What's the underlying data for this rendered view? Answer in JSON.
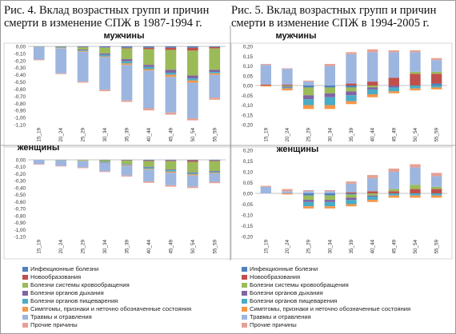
{
  "left_title": "Рис. 4. Вклад возрастных групп и причин\nсмерти в изменение СПЖ в 1987-1994 г.",
  "right_title": "Рис. 5. Вклад возрастных групп и причин\nсмерти в изменение СПЖ в 1994-2005 г.",
  "colors": [
    "#4f81bd",
    "#c0504d",
    "#9bbb59",
    "#8064a2",
    "#4bacc6",
    "#f79646",
    "#9db6e0",
    "#e6a196"
  ],
  "legend": [
    "Инфекционные болезни",
    "Новообразования",
    "Болезни системы кровообращения",
    "Болезни органов дыхания",
    "Болезни органов пищеварения",
    "Симптомы, признаки и неточно обозначенные состояния",
    "Травмы и отравления",
    "Прочие причины"
  ],
  "chart_data": [
    {
      "type": "bar",
      "stacked": true,
      "title": "мужчины",
      "categories": [
        "15_19",
        "20_24",
        "25_29",
        "30_34",
        "35_39",
        "40_44",
        "45_49",
        "50_54",
        "55_59"
      ],
      "ylim": [
        -1.1,
        0.0
      ],
      "yticks": [
        0.0,
        -0.1,
        -0.2,
        -0.3,
        -0.4,
        -0.5,
        -0.6,
        -0.7,
        -0.8,
        -0.9,
        -1.0,
        -1.1
      ],
      "ytick_labels": [
        "0,00",
        "-0,10",
        "-0,20",
        "-0,30",
        "-0,40",
        "-0,50",
        "-0,60",
        "-0,70",
        "-0,80",
        "-0,90",
        "-1,00",
        "-1,10"
      ],
      "series": [
        {
          "name": "Инфекционные болезни",
          "values": [
            0,
            -0.005,
            -0.01,
            -0.015,
            -0.02,
            -0.02,
            -0.02,
            -0.02,
            -0.01
          ]
        },
        {
          "name": "Новообразования",
          "values": [
            0,
            0,
            -0.005,
            -0.005,
            -0.01,
            -0.02,
            -0.03,
            -0.04,
            -0.02
          ]
        },
        {
          "name": "Болезни системы кровообращения",
          "values": [
            -0.005,
            -0.01,
            -0.03,
            -0.08,
            -0.15,
            -0.22,
            -0.28,
            -0.35,
            -0.3
          ]
        },
        {
          "name": "Болезни органов дыхания",
          "values": [
            0,
            -0.005,
            -0.01,
            -0.02,
            -0.03,
            -0.03,
            -0.04,
            -0.04,
            -0.03
          ]
        },
        {
          "name": "Болезни органов пищеварения",
          "values": [
            0,
            -0.005,
            -0.01,
            -0.02,
            -0.03,
            -0.03,
            -0.03,
            -0.03,
            -0.02
          ]
        },
        {
          "name": "Симптомы, признаки и неточно обозначенные состояния",
          "values": [
            0,
            -0.005,
            -0.01,
            -0.01,
            -0.02,
            -0.02,
            -0.03,
            -0.03,
            -0.02
          ]
        },
        {
          "name": "Травмы и отравления",
          "values": [
            -0.18,
            -0.35,
            -0.42,
            -0.46,
            -0.5,
            -0.53,
            -0.5,
            -0.5,
            -0.32
          ]
        },
        {
          "name": "Прочие причины",
          "values": [
            -0.01,
            -0.01,
            -0.015,
            -0.02,
            -0.02,
            -0.03,
            -0.03,
            -0.03,
            -0.03
          ]
        }
      ]
    },
    {
      "type": "bar",
      "stacked": true,
      "title": "женщины",
      "categories": [
        "15_19",
        "20_24",
        "25_29",
        "30_34",
        "35_39",
        "40_44",
        "45_49",
        "50_54",
        "55_59"
      ],
      "ylim": [
        -1.1,
        0.0
      ],
      "yticks": [
        0.0,
        -0.1,
        -0.2,
        -0.3,
        -0.4,
        -0.5,
        -0.6,
        -0.7,
        -0.8,
        -0.9,
        -1.0,
        -1.1
      ],
      "ytick_labels": [
        "0,00",
        "-0,10",
        "-0,20",
        "-0,30",
        "-0,40",
        "-0,50",
        "-0,60",
        "-0,70",
        "-0,80",
        "-0,90",
        "-1,00",
        "-1,10"
      ],
      "series": [
        {
          "name": "Инфекционные болезни",
          "values": [
            0,
            0,
            0,
            -0.005,
            -0.005,
            -0.01,
            -0.01,
            -0.01,
            -0.01
          ]
        },
        {
          "name": "Новообразования",
          "values": [
            0,
            0,
            0,
            0,
            -0.005,
            -0.01,
            -0.01,
            -0.02,
            -0.01
          ]
        },
        {
          "name": "Болезни системы кровообращения",
          "values": [
            0,
            -0.005,
            -0.01,
            -0.02,
            -0.05,
            -0.08,
            -0.12,
            -0.15,
            -0.14
          ]
        },
        {
          "name": "Болезни органов дыхания",
          "values": [
            0,
            0,
            0,
            -0.005,
            -0.005,
            -0.01,
            -0.01,
            -0.01,
            -0.01
          ]
        },
        {
          "name": "Болезни органов пищеварения",
          "values": [
            0,
            0,
            -0.005,
            -0.01,
            -0.01,
            -0.02,
            -0.02,
            -0.02,
            -0.015
          ]
        },
        {
          "name": "Симптомы, признаки и неточно обозначенные состояния",
          "values": [
            0,
            0,
            -0.005,
            -0.005,
            -0.01,
            -0.01,
            -0.015,
            -0.015,
            -0.01
          ]
        },
        {
          "name": "Травмы и отравления",
          "values": [
            -0.06,
            -0.08,
            -0.09,
            -0.12,
            -0.14,
            -0.17,
            -0.18,
            -0.16,
            -0.12
          ]
        },
        {
          "name": "Прочие причины",
          "values": [
            -0.01,
            -0.01,
            -0.01,
            -0.01,
            -0.015,
            -0.02,
            -0.02,
            -0.02,
            -0.02
          ]
        }
      ]
    },
    {
      "type": "bar",
      "stacked": true,
      "title": "мужчины",
      "categories": [
        "15_19",
        "20_24",
        "25_29",
        "30_34",
        "35_39",
        "40_44",
        "45_49",
        "50_54",
        "55_59"
      ],
      "ylim": [
        -0.2,
        0.2
      ],
      "yticks": [
        0.2,
        0.15,
        0.1,
        0.05,
        0.0,
        -0.05,
        -0.1,
        -0.15,
        -0.2
      ],
      "ytick_labels": [
        "0,20",
        "0,15",
        "0,10",
        "0,05",
        "0,00",
        "-0,05",
        "-0,10",
        "-0,15",
        "-0,20"
      ],
      "series": [
        {
          "name": "Инфекционные болезни",
          "values": [
            0,
            0,
            -0.01,
            -0.01,
            -0.01,
            0,
            0,
            0,
            0.01
          ]
        },
        {
          "name": "Новообразования",
          "values": [
            0.005,
            0.005,
            0,
            0,
            0.01,
            0.02,
            0.04,
            0.06,
            0.05
          ]
        },
        {
          "name": "Болезни системы кровообращения",
          "values": [
            0,
            -0.005,
            -0.04,
            -0.03,
            -0.02,
            -0.01,
            0,
            0.01,
            0.01
          ]
        },
        {
          "name": "Болезни органов дыхания",
          "values": [
            0,
            -0.005,
            -0.02,
            -0.02,
            -0.02,
            -0.01,
            -0.01,
            0,
            0
          ]
        },
        {
          "name": "Болезни органов пищеварения",
          "values": [
            0,
            -0.005,
            -0.03,
            -0.04,
            -0.03,
            -0.025,
            -0.02,
            -0.015,
            -0.01
          ]
        },
        {
          "name": "Симптомы, признаки и неточно обозначенные состояния",
          "values": [
            -0.005,
            -0.01,
            -0.02,
            -0.02,
            -0.015,
            -0.015,
            -0.01,
            -0.01,
            -0.01
          ]
        },
        {
          "name": "Травмы и отравления",
          "values": [
            0.1,
            0.08,
            0.02,
            0.1,
            0.15,
            0.15,
            0.13,
            0.1,
            0.06
          ]
        },
        {
          "name": "Прочие причины",
          "values": [
            0.005,
            0.003,
            0.005,
            0.01,
            0.01,
            0.015,
            0.01,
            0.01,
            0.01
          ]
        }
      ]
    },
    {
      "type": "bar",
      "stacked": true,
      "title": "женщины",
      "categories": [
        "15_19",
        "20_24",
        "25_29",
        "30_34",
        "35_39",
        "40_44",
        "45_49",
        "50_54",
        "55_59"
      ],
      "ylim": [
        -0.2,
        0.2
      ],
      "yticks": [
        0.2,
        0.15,
        0.1,
        0.05,
        0.0,
        -0.05,
        -0.1,
        -0.15,
        -0.2
      ],
      "ytick_labels": [
        "0,20",
        "0,15",
        "0,10",
        "0,05",
        "0,00",
        "-0,05",
        "-0,10",
        "-0,15",
        "-0,20"
      ],
      "series": [
        {
          "name": "Инфекционные болезни",
          "values": [
            0,
            0,
            -0.01,
            -0.01,
            -0.005,
            0,
            0,
            0,
            0
          ]
        },
        {
          "name": "Новообразования",
          "values": [
            0,
            0,
            0,
            0,
            0.005,
            0.01,
            0.01,
            0.02,
            0.02
          ]
        },
        {
          "name": "Болезни системы кровообращения",
          "values": [
            0,
            0,
            -0.02,
            -0.02,
            -0.015,
            -0.01,
            0.01,
            0.02,
            0.01
          ]
        },
        {
          "name": "Болезни органов дыхания",
          "values": [
            0,
            0,
            -0.01,
            -0.01,
            -0.01,
            -0.005,
            0,
            0,
            0
          ]
        },
        {
          "name": "Болезни органов пищеварения",
          "values": [
            0,
            0,
            -0.02,
            -0.02,
            -0.02,
            -0.015,
            -0.01,
            -0.01,
            -0.01
          ]
        },
        {
          "name": "Симптомы, признаки и неточно обозначенные состояния",
          "values": [
            0,
            -0.005,
            -0.01,
            -0.01,
            -0.01,
            -0.01,
            -0.01,
            -0.01,
            -0.01
          ]
        },
        {
          "name": "Травмы и отравления",
          "values": [
            0.03,
            0.01,
            0.01,
            0.01,
            0.04,
            0.06,
            0.08,
            0.08,
            0.05
          ]
        },
        {
          "name": "Прочие причины",
          "values": [
            0.005,
            0.01,
            0.005,
            0.005,
            0.01,
            0.015,
            0.015,
            0.015,
            0.015
          ]
        }
      ]
    }
  ]
}
